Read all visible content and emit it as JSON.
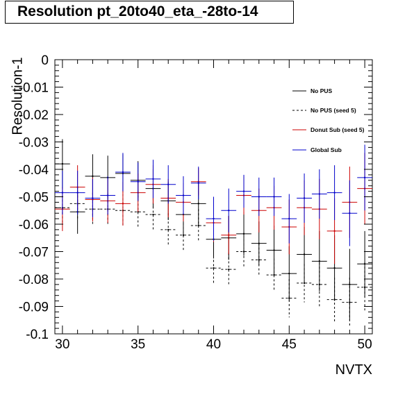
{
  "chart_data": {
    "type": "scatter",
    "title": "Resolution pt_20to40_eta_-28to-14",
    "xlabel": "NVTX",
    "ylabel": "Resolution-1",
    "xlim": [
      29.5,
      50.5
    ],
    "ylim": [
      -0.1,
      0
    ],
    "x_ticks": [
      "30",
      "35",
      "40",
      "45",
      "50"
    ],
    "y_ticks": [
      "0",
      "-0.01",
      "-0.02",
      "-0.03",
      "-0.04",
      "-0.05",
      "-0.06",
      "-0.07",
      "-0.08",
      "-0.09",
      "-0.1"
    ],
    "grid": false,
    "legend_position": "top-right",
    "series": [
      {
        "name": "No PUS",
        "color": "#000000",
        "dashed": false,
        "x": [
          30,
          31,
          32,
          33,
          34,
          35,
          36,
          37,
          38,
          39,
          40,
          41,
          42,
          43,
          44,
          45,
          46,
          47,
          48,
          49,
          50
        ],
        "y": [
          -0.038,
          -0.0555,
          -0.0425,
          -0.043,
          -0.0415,
          -0.044,
          -0.047,
          -0.0515,
          -0.0565,
          -0.0525,
          -0.0655,
          -0.065,
          -0.0635,
          -0.067,
          -0.0695,
          -0.078,
          -0.071,
          -0.0735,
          -0.076,
          -0.082,
          -0.0745
        ],
        "err": [
          0.009,
          0.008,
          0.008,
          0.008,
          0.007,
          0.007,
          0.007,
          0.007,
          0.008,
          0.008,
          0.007,
          0.008,
          0.008,
          0.008,
          0.009,
          0.01,
          0.01,
          0.011,
          0.012,
          0.013,
          0.012
        ]
      },
      {
        "name": "No PUS (seed 5)",
        "color": "#000000",
        "dashed": true,
        "x": [
          30,
          31,
          32,
          33,
          34,
          35,
          36,
          37,
          38,
          39,
          40,
          41,
          42,
          43,
          44,
          45,
          46,
          47,
          48,
          49,
          50
        ],
        "y": [
          -0.054,
          -0.0525,
          -0.0545,
          -0.0545,
          -0.055,
          -0.0555,
          -0.0565,
          -0.062,
          -0.064,
          -0.0605,
          -0.076,
          -0.0765,
          -0.07,
          -0.073,
          -0.0785,
          -0.087,
          -0.0815,
          -0.082,
          -0.0875,
          -0.0885,
          -0.083
        ],
        "err": [
          0.006,
          0.006,
          0.006,
          0.006,
          0.006,
          0.006,
          0.006,
          0.006,
          0.006,
          0.006,
          0.006,
          0.006,
          0.006,
          0.006,
          0.006,
          0.007,
          0.007,
          0.008,
          0.008,
          0.009,
          0.009
        ]
      },
      {
        "name": "Donut Sub (seed 5)",
        "color": "#cc0000",
        "dashed": false,
        "x": [
          30,
          31,
          32,
          33,
          34,
          35,
          36,
          37,
          38,
          39,
          40,
          41,
          42,
          43,
          44,
          45,
          46,
          47,
          48,
          49,
          50
        ],
        "y": [
          -0.0545,
          -0.0465,
          -0.051,
          -0.0515,
          -0.0525,
          -0.0485,
          -0.0455,
          -0.0505,
          -0.052,
          -0.0445,
          -0.0595,
          -0.064,
          -0.0495,
          -0.055,
          -0.054,
          -0.061,
          -0.054,
          -0.0545,
          -0.0625,
          -0.052,
          -0.047
        ],
        "err": [
          0.008,
          0.008,
          0.008,
          0.008,
          0.008,
          0.007,
          0.007,
          0.007,
          0.007,
          0.005,
          0.007,
          0.007,
          0.007,
          0.008,
          0.008,
          0.01,
          0.01,
          0.011,
          0.012,
          0.013,
          0.013
        ]
      },
      {
        "name": "Global Sub",
        "color": "#0000cc",
        "dashed": false,
        "x": [
          30,
          31,
          32,
          33,
          34,
          35,
          36,
          37,
          38,
          39,
          40,
          41,
          42,
          43,
          44,
          45,
          46,
          47,
          48,
          49,
          50
        ],
        "y": [
          -0.0485,
          -0.0485,
          -0.0505,
          -0.0495,
          -0.041,
          -0.0445,
          -0.0435,
          -0.0455,
          -0.0495,
          -0.045,
          -0.058,
          -0.055,
          -0.048,
          -0.05,
          -0.05,
          -0.058,
          -0.0505,
          -0.049,
          -0.0485,
          -0.056,
          -0.043
        ],
        "err": [
          0.008,
          0.008,
          0.007,
          0.007,
          0.007,
          0.007,
          0.007,
          0.007,
          0.007,
          0.006,
          0.008,
          0.008,
          0.006,
          0.007,
          0.007,
          0.009,
          0.009,
          0.009,
          0.01,
          0.012,
          0.012
        ]
      }
    ]
  }
}
